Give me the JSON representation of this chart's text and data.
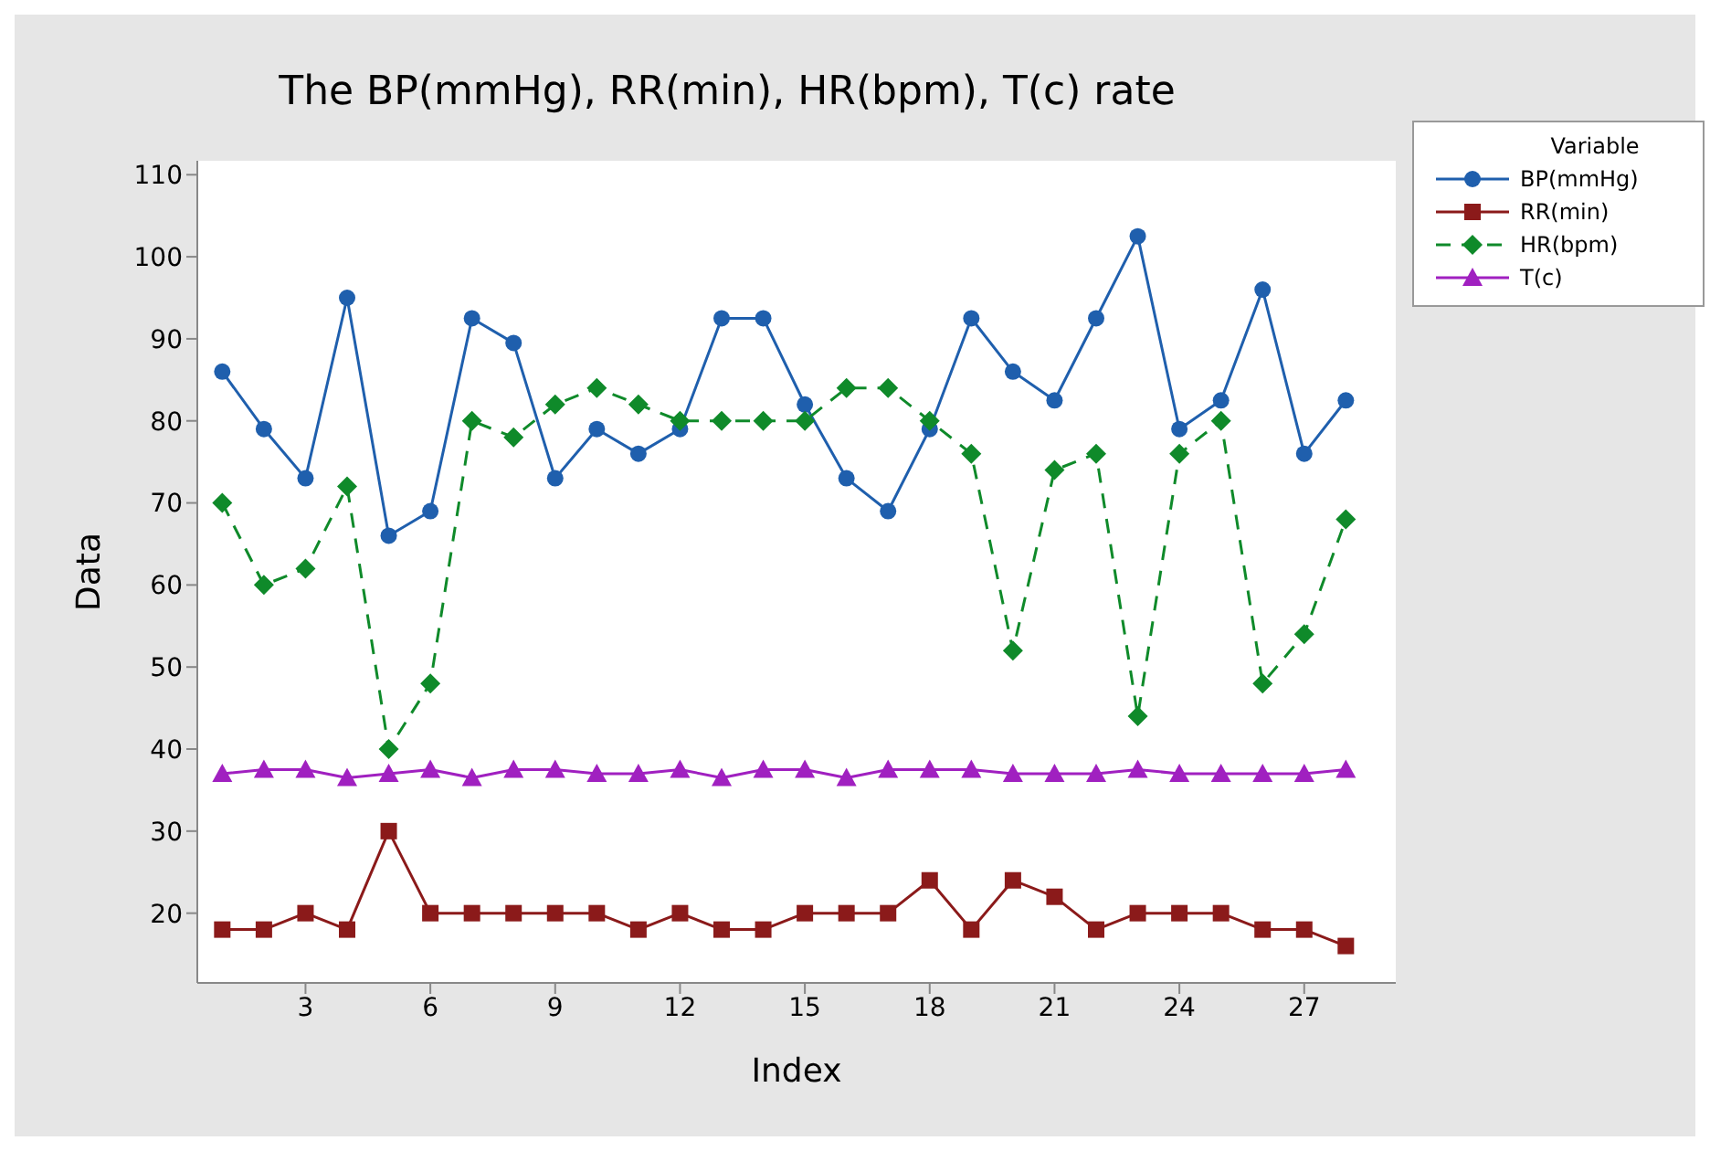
{
  "chart_data": {
    "type": "line",
    "title": "The  BP(mmHg), RR(min), HR(bpm), T(c) rate",
    "xlabel": "Index",
    "ylabel": "Data",
    "legend_title": "Variable",
    "legend": "top right",
    "x": [
      1,
      2,
      3,
      4,
      5,
      6,
      7,
      8,
      9,
      10,
      11,
      12,
      13,
      14,
      15,
      16,
      17,
      18,
      19,
      20,
      21,
      22,
      23,
      24,
      25,
      26,
      27,
      28
    ],
    "xlim": [
      0.4,
      29.2
    ],
    "xticks": [
      3,
      6,
      9,
      12,
      15,
      18,
      21,
      24,
      27
    ],
    "ylim": [
      11.5,
      111.7
    ],
    "yticks": [
      20,
      30,
      40,
      50,
      60,
      70,
      80,
      90,
      100,
      110
    ],
    "series": [
      {
        "name": "BP(mmHg)",
        "color": "#1f5fad",
        "marker": "circle",
        "line_style": "solid",
        "values": [
          86,
          79,
          73,
          95,
          66,
          69,
          92.5,
          89.5,
          73,
          79,
          76,
          79,
          92.5,
          92.5,
          82,
          73,
          69,
          79,
          92.5,
          86,
          82.5,
          92.5,
          102.5,
          79,
          82.5,
          96,
          76,
          82.5
        ]
      },
      {
        "name": "RR(min)",
        "color": "#8b1a1a",
        "marker": "square",
        "line_style": "solid",
        "values": [
          18,
          18,
          20,
          18,
          30,
          20,
          20,
          20,
          20,
          20,
          18,
          20,
          18,
          18,
          20,
          20,
          20,
          24,
          18,
          24,
          22,
          18,
          20,
          20,
          20,
          18,
          18,
          16
        ]
      },
      {
        "name": "HR(bpm)",
        "color": "#0f8a2a",
        "marker": "diamond",
        "line_style": "dashed",
        "values": [
          70,
          60,
          62,
          72,
          40,
          48,
          80,
          78,
          82,
          84,
          82,
          80,
          80,
          80,
          80,
          84,
          84,
          80,
          76,
          52,
          74,
          76,
          44,
          76,
          80,
          48,
          54,
          68
        ]
      },
      {
        "name": "T(c)",
        "color": "#a020c0",
        "marker": "triangle",
        "line_style": "solid",
        "values": [
          37,
          37.5,
          37.5,
          36.5,
          37,
          37.5,
          36.5,
          37.5,
          37.5,
          37,
          37,
          37.5,
          36.5,
          37.5,
          37.5,
          36.5,
          37.5,
          37.5,
          37.5,
          37,
          37,
          37,
          37.5,
          37,
          37,
          37,
          37,
          37.5
        ]
      }
    ]
  }
}
